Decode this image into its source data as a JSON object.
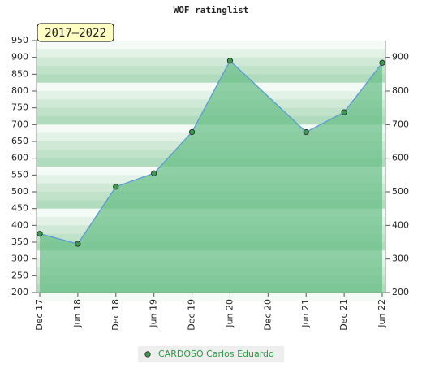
{
  "chart_data": {
    "type": "area",
    "title": "WOF ratinglist",
    "annotation": "2017–2022",
    "categories": [
      "Dec 17",
      "Jun 18",
      "Dec 18",
      "Jun 19",
      "Dec 19",
      "Jun 20",
      "Dec 20",
      "Jun 21",
      "Dec 21",
      "Jun 22"
    ],
    "series": [
      {
        "name": "CARDOSO Carlos Eduardo",
        "color": "#5b9bd5",
        "fill": "#6cc08a",
        "x": [
          "Dec 17",
          "Jun 18",
          "Dec 18",
          "Jun 19",
          "Dec 19",
          "Jun 20",
          "Jun 21",
          "Dec 21",
          "Jun 22"
        ],
        "values": [
          375,
          345,
          515,
          555,
          678,
          890,
          678,
          737,
          884
        ]
      }
    ],
    "ylim": [
      200,
      950
    ],
    "yticks": [
      200,
      250,
      300,
      350,
      400,
      450,
      500,
      550,
      600,
      650,
      700,
      750,
      800,
      850,
      900,
      950
    ],
    "y2lim": [
      200,
      950
    ],
    "y2ticks": [
      200,
      300,
      400,
      500,
      600,
      700,
      800,
      900
    ]
  }
}
